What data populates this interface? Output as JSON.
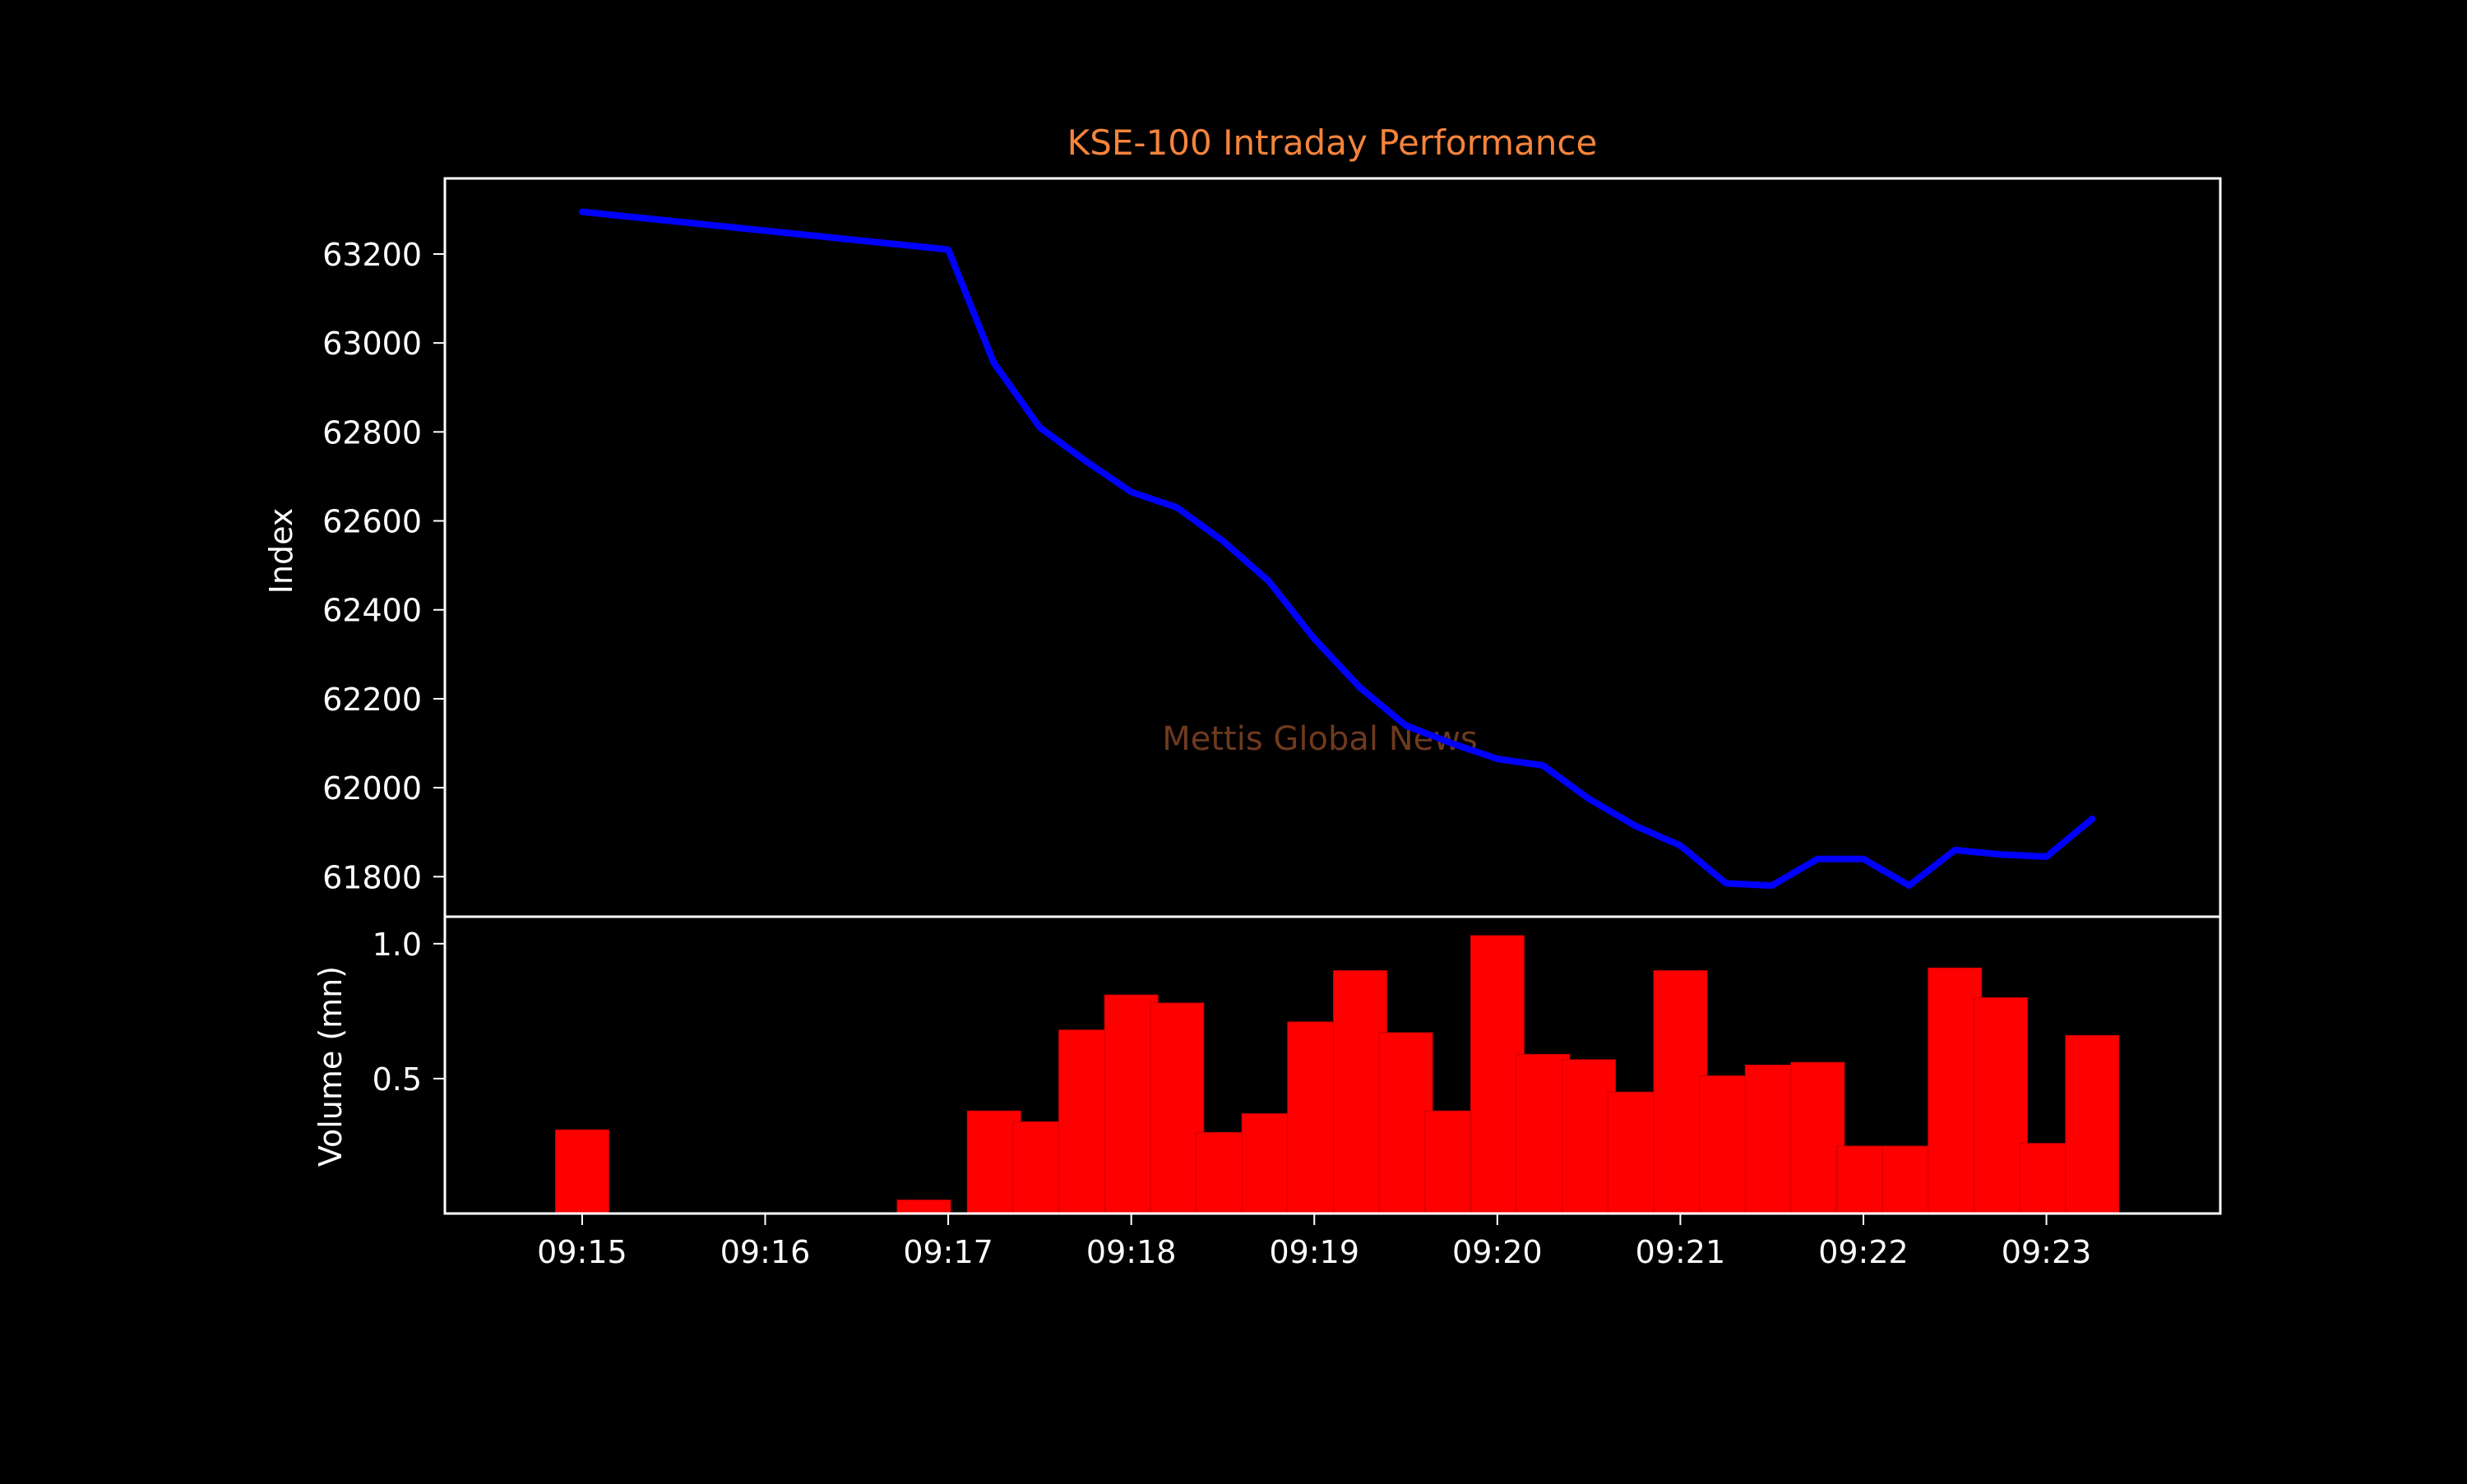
{
  "chart_data": [
    {
      "type": "line",
      "title": "KSE-100 Intraday Performance",
      "ylabel": "Index",
      "watermark": "Mettis Global News",
      "ylim": [
        61710,
        63370
      ],
      "yticks": [
        61800,
        62000,
        62200,
        62400,
        62600,
        62800,
        63000,
        63200
      ],
      "xlim": [
        "09:14:15",
        "09:23:57"
      ],
      "series": [
        {
          "x": [
            "09:15:00",
            "09:17:00",
            "09:17:15",
            "09:17:30",
            "09:17:45",
            "09:18:00",
            "09:18:15",
            "09:18:30",
            "09:18:45",
            "09:19:00",
            "09:19:15",
            "09:19:30",
            "09:19:45",
            "09:20:00",
            "09:20:15",
            "09:20:30",
            "09:20:45",
            "09:21:00",
            "09:21:15",
            "09:21:30",
            "09:21:45",
            "09:22:00",
            "09:22:15",
            "09:22:30",
            "09:22:45",
            "09:23:00",
            "09:23:15"
          ],
          "y": [
            63295,
            63210,
            62955,
            62810,
            62735,
            62665,
            62630,
            62555,
            62465,
            62335,
            62225,
            62140,
            62100,
            62065,
            62050,
            61975,
            61915,
            61870,
            61785,
            61780,
            61840,
            61840,
            61780,
            61860,
            61850,
            61845,
            61930
          ]
        }
      ]
    },
    {
      "type": "bar",
      "ylabel": "Volume (mn)",
      "ylim": [
        0,
        1.1
      ],
      "yticks": [
        0.5,
        1.0
      ],
      "xticks": [
        "09:15",
        "09:16",
        "09:17",
        "09:18",
        "09:19",
        "09:20",
        "09:21",
        "09:22",
        "09:23"
      ],
      "x": [
        "09:15:00",
        "09:16:52",
        "09:17:15",
        "09:17:30",
        "09:17:45",
        "09:18:00",
        "09:18:15",
        "09:18:30",
        "09:18:45",
        "09:19:00",
        "09:19:15",
        "09:19:30",
        "09:19:45",
        "09:20:00",
        "09:20:15",
        "09:20:30",
        "09:20:45",
        "09:21:00",
        "09:21:15",
        "09:21:30",
        "09:21:45",
        "09:22:00",
        "09:22:15",
        "09:22:30",
        "09:22:45",
        "09:23:00",
        "09:23:15"
      ],
      "values": [
        0.31,
        0.05,
        0.38,
        0.34,
        0.68,
        0.81,
        0.78,
        0.3,
        0.37,
        0.71,
        0.9,
        0.67,
        0.38,
        1.03,
        0.59,
        0.57,
        0.45,
        0.9,
        0.51,
        0.55,
        0.56,
        0.25,
        0.25,
        0.91,
        0.8,
        0.26,
        0.66
      ]
    }
  ],
  "colors": {
    "background": "#000000",
    "axes": "#ffffff",
    "title": "#f4843c",
    "line": "#0000ff",
    "bars": "#ff0000",
    "watermark": "#6e3a1f"
  }
}
